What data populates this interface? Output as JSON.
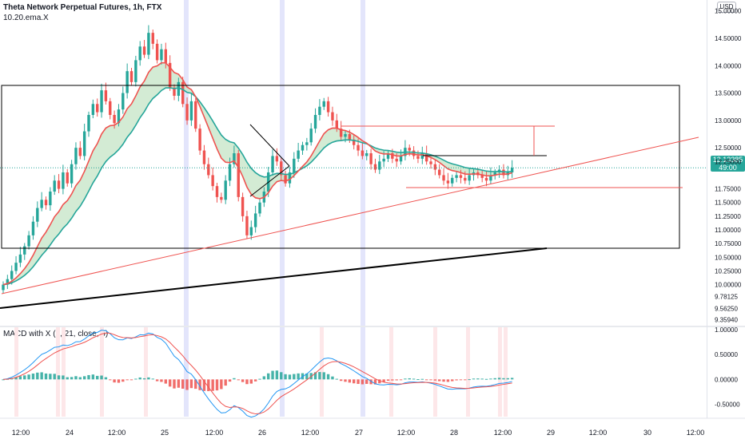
{
  "symbol_title": "Theta Network Perpetual Futures, 1h, FTX",
  "indicator_label": "10.20.ema.X",
  "macd_label": "MACD with X (8, 21, close, 5)",
  "currency_badge": "USD",
  "last_price_label": "12.13385",
  "countdown_label": "49:00",
  "colors": {
    "up": "#26a69a",
    "down": "#ef5350",
    "ema_fast": "#ef5350",
    "ema_slow": "#26a69a",
    "ribbon_up": "#c8e6c9",
    "ribbon_down": "#f8c9c9",
    "highlight_blue": "#e3e5fb",
    "highlight_pink": "#fde7e9",
    "drawing_red": "#ef5350",
    "drawing_black": "#000000",
    "macd_line": "#2196f3",
    "signal_line": "#ef5350"
  },
  "chart_data": [
    {
      "type": "candlestick",
      "price_axis_ticks": [
        "15.00000",
        "14.50000",
        "14.00000",
        "13.50000",
        "13.00000",
        "12.50000",
        "12.25000",
        "11.75000",
        "11.50000",
        "11.25000",
        "11.00000",
        "10.75000",
        "10.50000",
        "10.25000",
        "10.00000",
        "9.78125",
        "9.56250",
        "9.35940"
      ],
      "time_axis_ticks": [
        "12:00",
        "24",
        "12:00",
        "25",
        "12:00",
        "26",
        "12:00",
        "27",
        "12:00",
        "28",
        "12:00",
        "29",
        "12:00",
        "30",
        "12:00"
      ],
      "ylim": [
        9.25,
        15.2
      ],
      "candles_close": [
        10.0,
        10.1,
        10.25,
        10.4,
        10.55,
        10.7,
        10.9,
        11.15,
        11.4,
        11.55,
        11.45,
        11.7,
        11.9,
        11.75,
        12.05,
        11.85,
        12.2,
        12.5,
        12.35,
        12.8,
        13.1,
        13.3,
        13.15,
        13.55,
        13.35,
        13.1,
        12.95,
        13.2,
        13.5,
        13.9,
        13.7,
        14.1,
        14.35,
        14.2,
        14.6,
        14.4,
        14.1,
        14.3,
        14.05,
        13.6,
        13.45,
        13.7,
        13.3,
        13.0,
        13.35,
        12.85,
        12.45,
        12.2,
        12.0,
        11.8,
        11.6,
        11.55,
        11.9,
        12.2,
        12.4,
        11.6,
        11.25,
        10.9,
        11.05,
        11.3,
        11.5,
        11.7,
        12.05,
        12.35,
        12.25,
        12.0,
        11.85,
        12.05,
        12.3,
        12.45,
        12.55,
        12.6,
        12.85,
        13.1,
        13.25,
        13.35,
        13.15,
        13.0,
        12.85,
        12.7,
        12.75,
        12.65,
        12.55,
        12.45,
        12.35,
        12.4,
        12.2,
        12.1,
        12.25,
        12.3,
        12.4,
        12.3,
        12.25,
        12.35,
        12.5,
        12.45,
        12.35,
        12.3,
        12.4,
        12.25,
        12.2,
        12.1,
        12.0,
        11.9,
        11.85,
        11.95,
        12.0,
        11.95,
        11.9,
        12.0,
        12.05,
        12.0,
        11.95,
        11.9,
        12.0,
        12.05,
        12.1,
        12.0,
        12.05,
        12.13385
      ],
      "ema_fast_desc": "red EMA line over price",
      "ema_slow_desc": "green EMA line with shaded ribbon",
      "last_price": 12.13385
    },
    {
      "type": "macd",
      "name": "MACD with X (8, 21, close, 5)",
      "ylim": [
        -0.75,
        1.05
      ],
      "axis_ticks": [
        "1.00000",
        "0.50000",
        "0.00000",
        "-0.50000"
      ]
    }
  ]
}
